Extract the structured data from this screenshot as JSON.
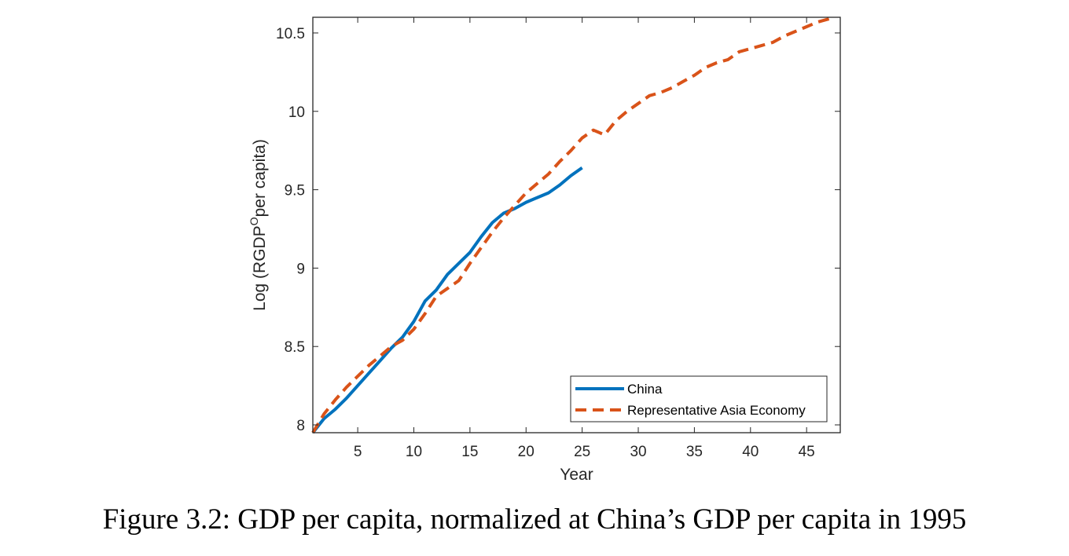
{
  "caption": "Figure 3.2: GDP per capita, normalized at China’s GDP per capita in 1995",
  "chart_data": {
    "type": "line",
    "xlabel": "Year",
    "ylabel_prefix": "Log (RGDP",
    "ylabel_sup": "O",
    "ylabel_suffix": "per capita)",
    "xlim": [
      1,
      48
    ],
    "ylim": [
      7.95,
      10.6
    ],
    "xticks": [
      5,
      10,
      15,
      20,
      25,
      30,
      35,
      40,
      45
    ],
    "yticks": [
      8,
      8.5,
      9,
      9.5,
      10,
      10.5
    ],
    "ytick_labels": [
      "8",
      "8.5",
      "9",
      "9.5",
      "10",
      "10.5"
    ],
    "grid": false,
    "legend_position": "bottom-right",
    "series": [
      {
        "name": "China",
        "color": "#0072BD",
        "style": "solid",
        "x": [
          1,
          2,
          3,
          4,
          5,
          6,
          7,
          8,
          9,
          10,
          11,
          12,
          13,
          14,
          15,
          16,
          17,
          18,
          19,
          20,
          21,
          22,
          23,
          24,
          25
        ],
        "y": [
          7.95,
          8.04,
          8.1,
          8.17,
          8.25,
          8.33,
          8.41,
          8.49,
          8.56,
          8.66,
          8.79,
          8.86,
          8.96,
          9.03,
          9.1,
          9.2,
          9.29,
          9.35,
          9.38,
          9.42,
          9.45,
          9.48,
          9.53,
          9.59,
          9.64
        ]
      },
      {
        "name": "Representative Asia Economy",
        "color": "#D95319",
        "style": "dashed",
        "x": [
          1,
          2,
          3,
          4,
          5,
          6,
          7,
          8,
          9,
          10,
          11,
          12,
          13,
          14,
          15,
          16,
          17,
          18,
          19,
          20,
          21,
          22,
          23,
          24,
          25,
          26,
          27,
          28,
          29,
          30,
          31,
          32,
          33,
          34,
          35,
          36,
          37,
          38,
          39,
          40,
          41,
          42,
          43,
          44,
          45,
          46,
          47
        ],
        "y": [
          7.95,
          8.07,
          8.16,
          8.24,
          8.31,
          8.38,
          8.44,
          8.5,
          8.54,
          8.61,
          8.71,
          8.82,
          8.87,
          8.92,
          9.03,
          9.13,
          9.23,
          9.32,
          9.4,
          9.48,
          9.54,
          9.6,
          9.68,
          9.75,
          9.83,
          9.88,
          9.85,
          9.94,
          10.0,
          10.05,
          10.1,
          10.12,
          10.15,
          10.19,
          10.23,
          10.28,
          10.31,
          10.33,
          10.38,
          10.4,
          10.42,
          10.44,
          10.48,
          10.51,
          10.54,
          10.57,
          10.59
        ]
      }
    ]
  }
}
